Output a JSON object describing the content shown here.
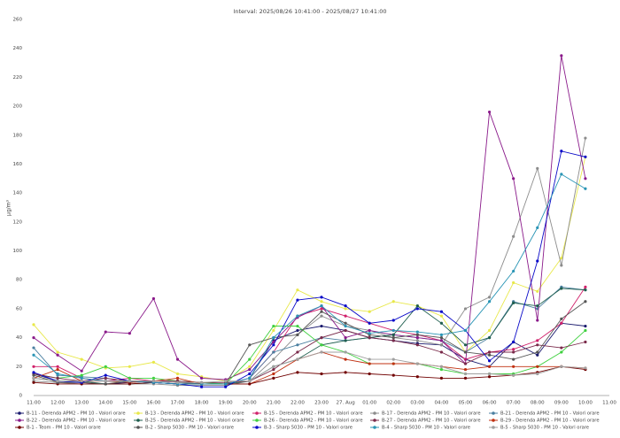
{
  "chart_data": {
    "type": "line",
    "title": "Interval: 2025/08/26 10:41:00 - 2025/08/27 10:41:00",
    "y_label": "µg/m³",
    "categories": [
      "11:00",
      "12:00",
      "13:00",
      "14:00",
      "15:00",
      "16:00",
      "17:00",
      "18:00",
      "19:00",
      "20:00",
      "21:00",
      "22:00",
      "23:00",
      "27. Aug",
      "01:00",
      "02:00",
      "03:00",
      "04:00",
      "05:00",
      "06:00",
      "07:00",
      "08:00",
      "09:00",
      "10:00",
      "11:00"
    ],
    "ylim": [
      0,
      260
    ],
    "yticks": [
      0,
      20,
      40,
      60,
      80,
      100,
      120,
      140,
      160,
      180,
      200,
      220,
      240,
      260
    ],
    "grid": false,
    "series": [
      {
        "name": "B-11 - Derenda APM2 - PM 10 - Valori orare",
        "color": "#1a1a6e",
        "values": [
          15,
          10,
          9,
          8,
          9,
          10,
          9,
          8,
          8,
          12,
          38,
          45,
          48,
          45,
          40,
          38,
          36,
          35,
          25,
          20,
          37,
          28,
          50,
          48,
          null
        ]
      },
      {
        "name": "B-13 - Derenda APM2 - PM 10 - Valori orare",
        "color": "#e8e84a",
        "values": [
          49,
          30,
          25,
          19,
          20,
          23,
          15,
          13,
          10,
          20,
          45,
          73,
          65,
          60,
          58,
          65,
          62,
          55,
          30,
          45,
          78,
          72,
          95,
          165,
          null
        ]
      },
      {
        "name": "B-15 - Derenda APM2 - PM 10 - Valori orare",
        "color": "#d0206a",
        "values": [
          20,
          20,
          12,
          10,
          12,
          10,
          10,
          9,
          8,
          12,
          30,
          55,
          60,
          55,
          50,
          45,
          42,
          38,
          25,
          30,
          32,
          38,
          50,
          75,
          null
        ]
      },
      {
        "name": "B-17 - Derenda APM2 - PM 10 - Valori orare",
        "color": "#8c8c8c",
        "values": [
          10,
          9,
          8,
          8,
          8,
          8,
          7,
          7,
          7,
          10,
          25,
          42,
          55,
          48,
          45,
          40,
          38,
          35,
          60,
          68,
          110,
          157,
          90,
          178,
          null
        ]
      },
      {
        "name": "B-21 - Derenda APM2 - PM 10 - Valori orare",
        "color": "#4a7fa0",
        "values": [
          33,
          14,
          13,
          12,
          10,
          9,
          8,
          8,
          8,
          12,
          30,
          35,
          40,
          38,
          40,
          42,
          40,
          38,
          30,
          40,
          65,
          60,
          75,
          73,
          null
        ]
      },
      {
        "name": "B-22 - Derenda APM2 - PM 10 - Valori orare",
        "color": "#8a1a8a",
        "values": [
          40,
          28,
          17,
          44,
          43,
          67,
          25,
          12,
          11,
          18,
          37,
          54,
          62,
          40,
          45,
          42,
          40,
          38,
          22,
          196,
          150,
          52,
          235,
          150,
          null
        ]
      },
      {
        "name": "B-25 - Derenda APM2 - PM 10 - Valori orare",
        "color": "#1f5f4f",
        "values": [
          12,
          10,
          10,
          8,
          8,
          9,
          8,
          8,
          8,
          10,
          20,
          25,
          35,
          38,
          40,
          42,
          62,
          50,
          35,
          40,
          64,
          62,
          74,
          73,
          null
        ]
      },
      {
        "name": "B-26 - Derenda APM2 - PM 10 - Valori orare",
        "color": "#40d040",
        "values": [
          15,
          12,
          14,
          20,
          12,
          12,
          10,
          9,
          8,
          25,
          48,
          48,
          35,
          30,
          22,
          22,
          22,
          18,
          15,
          15,
          15,
          20,
          30,
          45,
          null
        ]
      },
      {
        "name": "B-27 - Derenda APM2 - PM 10 - Valori orare",
        "color": "#7a2a4a",
        "values": [
          15,
          12,
          10,
          12,
          10,
          10,
          10,
          9,
          9,
          10,
          18,
          30,
          40,
          45,
          40,
          38,
          35,
          30,
          22,
          30,
          30,
          35,
          33,
          37,
          null
        ]
      },
      {
        "name": "B-29 - Derenda APM2 - PM 10 - Valori orare",
        "color": "#c03010",
        "values": [
          12,
          18,
          10,
          10,
          9,
          10,
          12,
          8,
          8,
          8,
          15,
          25,
          30,
          25,
          22,
          22,
          22,
          20,
          18,
          20,
          20,
          20,
          20,
          19,
          null
        ]
      },
      {
        "name": "B-1 - Teom - PM 10 - Valori orare",
        "color": "#700000",
        "values": [
          9,
          8,
          8,
          8,
          8,
          9,
          8,
          8,
          8,
          8,
          12,
          16,
          15,
          16,
          15,
          14,
          13,
          12,
          12,
          13,
          14,
          16,
          20,
          18,
          null
        ]
      },
      {
        "name": "B-2 - Sharp 5030 - PM 10 - Valori orare",
        "color": "#555555",
        "values": [
          14,
          9,
          9,
          8,
          10,
          10,
          9,
          8,
          8,
          35,
          40,
          42,
          58,
          50,
          42,
          40,
          42,
          40,
          30,
          28,
          25,
          30,
          53,
          65,
          null
        ]
      },
      {
        "name": "B-3 - Sharp 5030 - PM 10 - Valori orare",
        "color": "#0a0ac8",
        "values": [
          16,
          10,
          9,
          14,
          10,
          9,
          8,
          6,
          6,
          15,
          35,
          66,
          68,
          62,
          50,
          52,
          60,
          58,
          45,
          24,
          37,
          93,
          169,
          165,
          null
        ]
      },
      {
        "name": "B-4 - Sharp 5030 - PM 10 - Valori orare",
        "color": "#2a95b5",
        "values": [
          28,
          15,
          12,
          10,
          10,
          9,
          8,
          8,
          8,
          12,
          40,
          55,
          62,
          48,
          43,
          45,
          44,
          42,
          45,
          65,
          86,
          116,
          153,
          143,
          null
        ]
      },
      {
        "name": "B-5 - Sharp 5030 - PM 10 - Valori orare",
        "color": "#a0a0a0",
        "values": [
          12,
          10,
          10,
          10,
          10,
          10,
          9,
          9,
          10,
          10,
          20,
          25,
          30,
          30,
          25,
          25,
          22,
          20,
          15,
          15,
          14,
          15,
          20,
          19,
          null
        ]
      }
    ]
  }
}
